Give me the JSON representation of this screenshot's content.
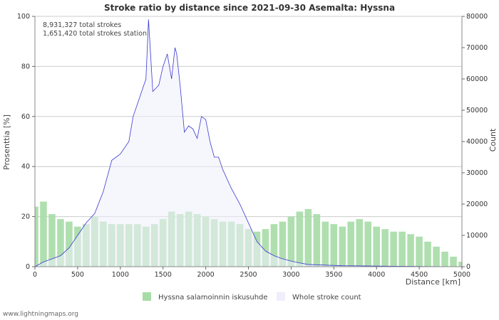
{
  "chart_data": {
    "type": "bar+area",
    "title": "Stroke ratio by distance since 2021-09-30 Asemalta: Hyssna",
    "annotations": [
      "8,931,327 total strokes",
      "1,651,420 total strokes station"
    ],
    "xlabel": "Distance   [km]",
    "ylabel_left": "Prosenttia   [%]",
    "ylabel_right": "Count",
    "xlim": [
      0,
      5000
    ],
    "ylim_left": [
      0,
      100
    ],
    "ylim_right": [
      0,
      80000
    ],
    "x_ticks": [
      0,
      500,
      1000,
      1500,
      2000,
      2500,
      3000,
      3500,
      4000,
      4500,
      5000
    ],
    "y_left_ticks": [
      0,
      20,
      40,
      60,
      80,
      100
    ],
    "y_right_ticks": [
      0,
      10000,
      20000,
      30000,
      40000,
      50000,
      60000,
      70000,
      80000
    ],
    "grid": true,
    "legend_position": "bottom",
    "series": [
      {
        "name": "Hyssna salamoinnin iskusuhde",
        "type": "bar",
        "axis": "left",
        "color": "#a6dca6",
        "x": [
          0,
          100,
          200,
          300,
          400,
          500,
          600,
          700,
          800,
          900,
          1000,
          1100,
          1200,
          1300,
          1400,
          1500,
          1600,
          1700,
          1800,
          1900,
          2000,
          2100,
          2200,
          2300,
          2400,
          2500,
          2600,
          2700,
          2800,
          2900,
          3000,
          3100,
          3200,
          3300,
          3400,
          3500,
          3600,
          3700,
          3800,
          3900,
          4000,
          4100,
          4200,
          4300,
          4400,
          4500,
          4600,
          4700,
          4800,
          4900,
          5000
        ],
        "values": [
          24,
          26,
          21,
          19,
          18,
          16,
          17,
          20,
          18,
          17,
          17,
          17,
          17,
          16,
          17,
          19,
          22,
          21,
          22,
          21,
          20,
          19,
          18,
          18,
          17,
          15,
          14,
          15,
          17,
          18,
          20,
          22,
          23,
          21,
          18,
          17,
          16,
          18,
          19,
          18,
          16,
          15,
          14,
          14,
          13,
          12,
          10,
          8,
          6,
          4,
          2
        ]
      },
      {
        "name": "Whole stroke count",
        "type": "area",
        "axis": "right",
        "color": "#3a3ad0",
        "fill": "#eeeefc",
        "x": [
          0,
          100,
          200,
          300,
          400,
          500,
          600,
          700,
          800,
          900,
          1000,
          1100,
          1150,
          1200,
          1250,
          1300,
          1330,
          1380,
          1450,
          1500,
          1550,
          1600,
          1640,
          1660,
          1700,
          1750,
          1800,
          1850,
          1900,
          1950,
          2000,
          2050,
          2100,
          2150,
          2200,
          2300,
          2400,
          2500,
          2600,
          2700,
          2800,
          2900,
          3000,
          3100,
          3200,
          3400,
          3600,
          3800,
          4000,
          4200,
          4400,
          4600,
          4800,
          5000
        ],
        "values": [
          0,
          1500,
          2500,
          3500,
          6000,
          10000,
          14000,
          17000,
          24000,
          34000,
          36000,
          40000,
          48000,
          52000,
          56000,
          60000,
          79000,
          56000,
          58000,
          64000,
          68000,
          60000,
          70000,
          68000,
          58000,
          43000,
          45000,
          44000,
          41000,
          48000,
          47000,
          40000,
          35000,
          35000,
          31000,
          25000,
          20000,
          14000,
          8000,
          5000,
          3500,
          2500,
          1800,
          1200,
          700,
          500,
          300,
          250,
          200,
          150,
          100,
          60,
          30,
          0
        ]
      }
    ]
  },
  "footer": "www.lightningmaps.org"
}
